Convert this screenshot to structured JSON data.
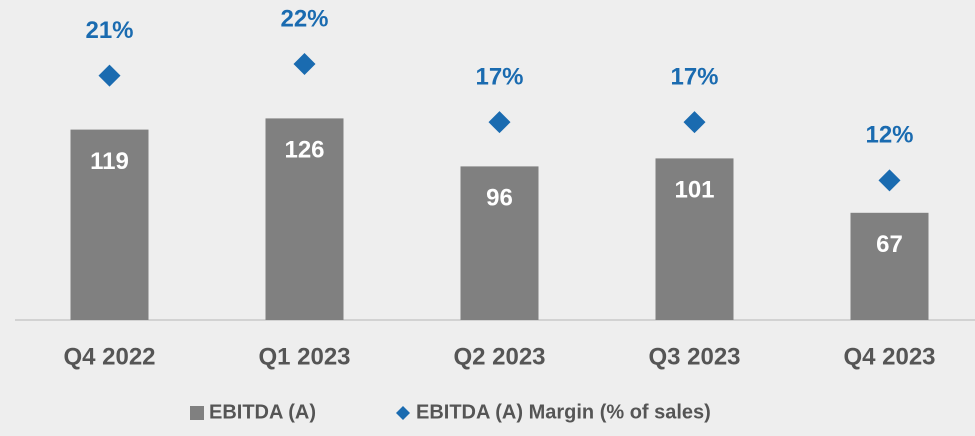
{
  "chart_data": {
    "type": "bar",
    "categories": [
      "Q4 2022",
      "Q1 2023",
      "Q2 2023",
      "Q3 2023",
      "Q4 2023"
    ],
    "series": [
      {
        "name": "EBITDA (A)",
        "type": "bar",
        "color": "#808080",
        "values": [
          119,
          126,
          96,
          101,
          67
        ]
      },
      {
        "name": "EBITDA (A) Margin (% of sales)",
        "type": "scatter",
        "marker": "diamond",
        "axis": "y2",
        "color": "#1a6bb0",
        "values": [
          21,
          22,
          17,
          17,
          12
        ],
        "value_labels": [
          "21%",
          "22%",
          "17%",
          "17%",
          "12%"
        ]
      }
    ],
    "ylim": [
      0,
      200
    ],
    "y2lim": [
      0,
      27.5
    ]
  }
}
